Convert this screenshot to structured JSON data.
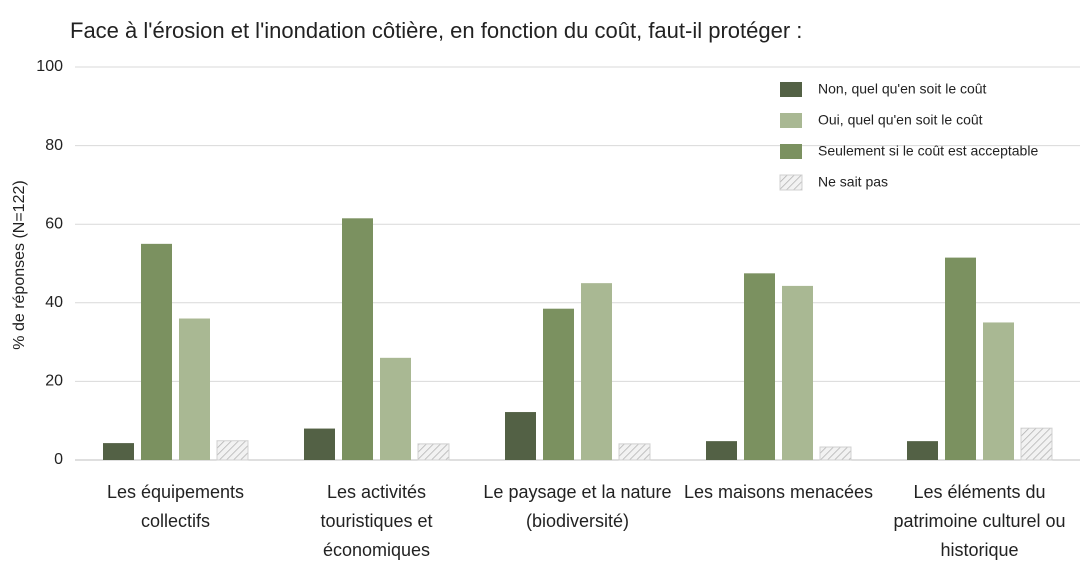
{
  "chart_data": {
    "type": "bar",
    "title": "Face à l'érosion et l'inondation côtière, en fonction du coût, faut-il protéger :",
    "ylabel": "% de réponses (N=122)",
    "categories": [
      "Les équipements collectifs",
      "Les activités touristiques et économiques",
      "Le paysage et la nature (biodiversité)",
      "Les maisons menacées",
      "Les éléments du patrimoine culturel ou historique"
    ],
    "series": [
      {
        "name": "Non, quel qu'en soit le coût",
        "color": "#536145",
        "values": [
          4.3,
          8,
          12.2,
          4.8,
          4.8
        ]
      },
      {
        "name": "Oui, quel qu'en soit le coût",
        "color": "#a9b893",
        "values": [
          36,
          26,
          45,
          44.3,
          35
        ]
      },
      {
        "name": "Seulement si le coût est acceptable",
        "color": "#7b9160",
        "values": [
          55,
          61.5,
          38.5,
          47.5,
          51.5
        ]
      },
      {
        "name": "Ne sait pas",
        "color": "#c8c8c8",
        "pattern": "hatch",
        "values": [
          4.9,
          4.1,
          4.1,
          3.3,
          8.1
        ]
      }
    ],
    "ylim": [
      0,
      100
    ],
    "yticks": [
      0,
      20,
      40,
      60,
      80,
      100
    ],
    "grid": true,
    "legend": "upper right"
  }
}
